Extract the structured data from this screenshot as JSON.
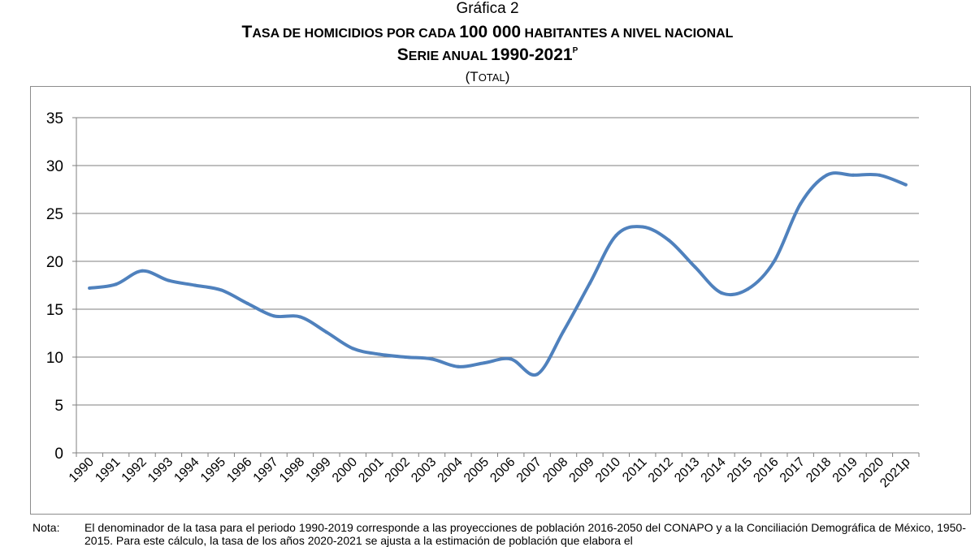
{
  "header": {
    "label": "Gráfica 2",
    "title_first": "T",
    "title_rest": "ASA DE HOMICIDIOS POR CADA ",
    "title_num": "100 000",
    "title_tail": " HABITANTES A NIVEL NACIONAL",
    "subtitle_first": "S",
    "subtitle_rest": "ERIE ANUAL ",
    "subtitle_years": "1990-2021",
    "subtitle_sup": "P",
    "unit_open": "(T",
    "unit_rest": "OTAL",
    "unit_close": ")"
  },
  "chart_data": {
    "type": "line",
    "title": "TASA DE HOMICIDIOS POR CADA 100 000 HABITANTES A NIVEL NACIONAL",
    "subtitle": "SERIE ANUAL 1990-2021P",
    "xlabel": "",
    "ylabel": "",
    "ylim": [
      0,
      35
    ],
    "yticks": [
      0,
      5,
      10,
      15,
      20,
      25,
      30,
      35
    ],
    "grid": true,
    "legend": "none",
    "line_color": "#4f81bd",
    "categories": [
      "1990",
      "1991",
      "1992",
      "1993",
      "1994",
      "1995",
      "1996",
      "1997",
      "1998",
      "1999",
      "2000",
      "2001",
      "2002",
      "2003",
      "2004",
      "2005",
      "2006",
      "2007",
      "2008",
      "2009",
      "2010",
      "2011",
      "2012",
      "2013",
      "2014",
      "2015",
      "2016",
      "2017",
      "2018",
      "2019",
      "2020",
      "2021p"
    ],
    "values": [
      17.2,
      17.6,
      19.0,
      18.0,
      17.5,
      17.0,
      15.6,
      14.3,
      14.2,
      12.6,
      10.9,
      10.3,
      10.0,
      9.8,
      9.0,
      9.4,
      9.8,
      8.2,
      12.7,
      17.7,
      22.7,
      23.6,
      22.2,
      19.4,
      16.7,
      17.1,
      20.0,
      26.0,
      29.0,
      29.0,
      29.0,
      28.0
    ]
  },
  "note": {
    "label": "Nota:",
    "text": "El denominador de la tasa para el periodo 1990-2019 corresponde a las proyecciones de población 2016-2050 del CONAPO y a la Conciliación Demográfica de México, 1950-2015. Para este cálculo, la tasa de los años 2020-2021 se ajusta a la estimación de población que elabora el"
  }
}
